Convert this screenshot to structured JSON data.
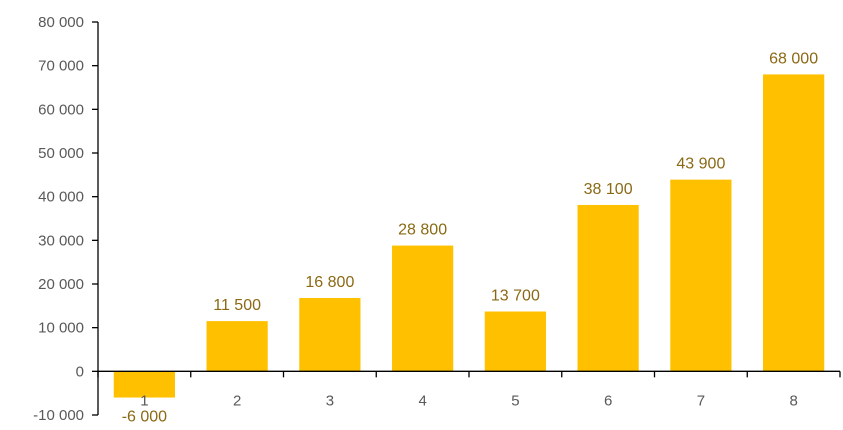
{
  "chart_data": {
    "type": "bar",
    "categories": [
      "1",
      "2",
      "3",
      "4",
      "5",
      "6",
      "7",
      "8"
    ],
    "values": [
      -6000,
      11500,
      16800,
      28800,
      13700,
      38100,
      43900,
      68000
    ],
    "data_labels": [
      "-6 000",
      "11 500",
      "16 800",
      "28 800",
      "13 700",
      "38 100",
      "43 900",
      "68 000"
    ],
    "ylim": [
      -10000,
      80000
    ],
    "y_ticks": [
      -10000,
      0,
      10000,
      20000,
      30000,
      40000,
      50000,
      60000,
      70000,
      80000
    ],
    "y_tick_labels": [
      "-10 000",
      "0",
      "10 000",
      "20 000",
      "30 000",
      "40 000",
      "50 000",
      "60 000",
      "70 000",
      "80 000"
    ],
    "title": "",
    "xlabel": "",
    "ylabel": "",
    "grid": false,
    "legend": "none"
  },
  "colors": {
    "bar": "#FFC000",
    "data_label": "#8B6914",
    "axis": "#000000",
    "tick_text": "#595959"
  }
}
